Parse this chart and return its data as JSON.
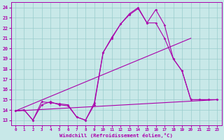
{
  "bg_color": "#c8e8e8",
  "line_color": "#aa00aa",
  "grid_color": "#99cccc",
  "xlabel": "Windchill (Refroidissement éolien,°C)",
  "ylim": [
    12.5,
    24.5
  ],
  "xlim": [
    -0.5,
    23.5
  ],
  "yticks": [
    13,
    14,
    15,
    16,
    17,
    18,
    19,
    20,
    21,
    22,
    23,
    24
  ],
  "xticks": [
    0,
    1,
    2,
    3,
    4,
    5,
    6,
    7,
    8,
    9,
    10,
    11,
    12,
    13,
    14,
    15,
    16,
    17,
    18,
    19,
    20,
    21,
    22,
    23
  ],
  "line1_x": [
    0,
    1,
    2,
    3,
    4,
    5,
    6,
    7,
    8,
    9,
    10,
    11,
    12,
    13,
    14,
    15,
    16,
    17,
    18,
    19,
    20,
    21,
    22,
    23
  ],
  "line1_y": [
    13.9,
    14.0,
    13.0,
    14.8,
    14.7,
    14.6,
    14.5,
    13.3,
    13.0,
    14.7,
    19.6,
    21.1,
    22.4,
    23.3,
    23.9,
    22.5,
    22.5,
    21.0,
    19.0,
    17.8,
    15.0,
    15.0,
    15.0,
    15.0
  ],
  "line2_x": [
    0,
    1,
    2,
    3,
    4,
    5,
    6,
    7,
    8,
    9,
    10,
    11,
    12,
    13,
    14,
    15,
    16,
    17,
    18,
    19,
    20,
    21,
    22,
    23
  ],
  "line2_y": [
    13.9,
    14.0,
    13.0,
    14.5,
    14.8,
    14.5,
    14.4,
    13.3,
    13.0,
    14.5,
    19.6,
    21.0,
    22.4,
    23.4,
    24.0,
    22.5,
    23.8,
    22.3,
    19.0,
    17.8,
    15.0,
    15.0,
    15.0,
    15.0
  ],
  "line3_x": [
    0,
    23
  ],
  "line3_y": [
    13.9,
    15.0
  ],
  "line4_x": [
    0,
    20
  ],
  "line4_y": [
    13.9,
    21.0
  ]
}
